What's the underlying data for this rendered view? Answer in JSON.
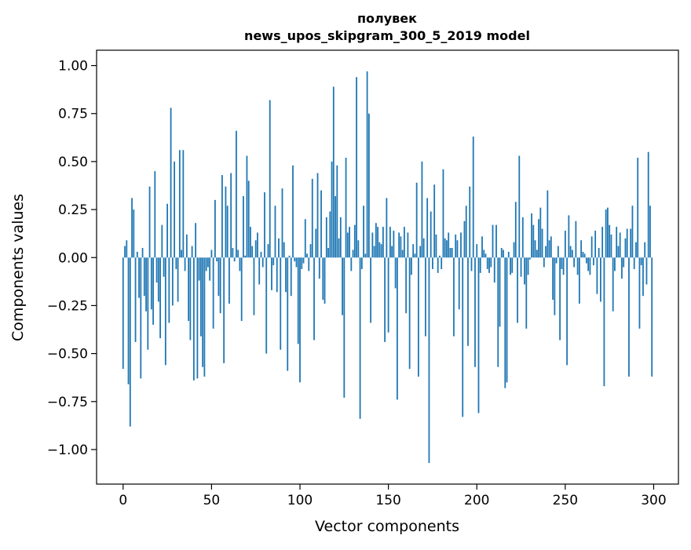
{
  "chart_data": {
    "type": "bar",
    "title": "полувек",
    "subtitle": "news_upos_skipgram_300_5_2019 model",
    "xlabel": "Vector components",
    "ylabel": "Components values",
    "xlim": [
      -15,
      314
    ],
    "ylim": [
      -1.18,
      1.08
    ],
    "x_ticks": [
      0,
      50,
      100,
      150,
      200,
      250,
      300
    ],
    "y_ticks": [
      -1.0,
      -0.75,
      -0.5,
      -0.25,
      0.0,
      0.25,
      0.5,
      0.75,
      1.0
    ],
    "x_tick_labels": [
      "0",
      "50",
      "100",
      "150",
      "200",
      "250",
      "300"
    ],
    "y_tick_labels": [
      "−1.00",
      "−0.75",
      "−0.50",
      "−0.25",
      "0.00",
      "0.25",
      "0.50",
      "0.75",
      "1.00"
    ],
    "bar_color": "#1f77b4",
    "values": [
      -0.58,
      0.06,
      0.09,
      -0.66,
      -0.88,
      0.31,
      0.25,
      -0.44,
      0.03,
      -0.21,
      -0.63,
      0.05,
      -0.2,
      -0.28,
      -0.48,
      0.37,
      -0.27,
      -0.35,
      0.45,
      -0.13,
      -0.23,
      -0.42,
      0.17,
      -0.1,
      -0.56,
      0.28,
      -0.34,
      0.78,
      -0.25,
      0.5,
      -0.06,
      -0.23,
      0.56,
      0.04,
      0.56,
      -0.07,
      0.12,
      -0.33,
      -0.43,
      0.06,
      -0.64,
      0.18,
      -0.63,
      -0.12,
      -0.41,
      -0.57,
      -0.62,
      -0.07,
      -0.05,
      -0.12,
      0.04,
      -0.37,
      0.3,
      -0.02,
      -0.2,
      -0.29,
      0.43,
      -0.55,
      0.37,
      0.27,
      -0.24,
      0.44,
      0.05,
      -0.02,
      0.66,
      0.04,
      -0.07,
      -0.33,
      0.32,
      0.01,
      0.53,
      0.4,
      0.16,
      0.06,
      -0.3,
      0.09,
      0.13,
      -0.14,
      0.03,
      -0.05,
      0.34,
      -0.5,
      0.07,
      0.82,
      -0.17,
      -0.04,
      0.27,
      -0.18,
      0.1,
      -0.48,
      0.36,
      0.08,
      -0.18,
      -0.59,
      0.01,
      -0.2,
      0.48,
      -0.02,
      -0.05,
      -0.45,
      -0.65,
      -0.06,
      -0.03,
      0.2,
      0.02,
      -0.07,
      0.07,
      0.41,
      -0.43,
      0.15,
      0.44,
      -0.11,
      0.35,
      -0.22,
      -0.24,
      0.21,
      0.05,
      0.24,
      0.5,
      0.89,
      0.32,
      0.48,
      0.1,
      0.21,
      -0.3,
      -0.73,
      0.52,
      0.13,
      0.16,
      -0.07,
      0.04,
      0.17,
      0.94,
      0.09,
      -0.84,
      -0.06,
      0.27,
      0.02,
      0.97,
      0.75,
      -0.34,
      0.13,
      0.06,
      0.18,
      0.16,
      0.08,
      0.07,
      0.16,
      -0.44,
      0.31,
      -0.39,
      0.16,
      0.06,
      0.14,
      -0.16,
      -0.74,
      0.13,
      0.11,
      0.04,
      0.16,
      -0.29,
      0.13,
      -0.58,
      -0.09,
      0.07,
      0.02,
      0.39,
      -0.62,
      0.06,
      0.5,
      0.1,
      -0.41,
      0.31,
      -1.07,
      0.24,
      -0.06,
      0.38,
      0.12,
      -0.08,
      0.01,
      -0.06,
      0.46,
      0.1,
      0.09,
      0.13,
      0.05,
      0.05,
      -0.41,
      0.12,
      0.09,
      -0.27,
      0.13,
      -0.83,
      0.19,
      0.27,
      -0.46,
      0.37,
      -0.07,
      0.63,
      -0.57,
      0.07,
      -0.81,
      -0.08,
      0.11,
      0.04,
      0.02,
      -0.06,
      -0.08,
      -0.05,
      0.17,
      -0.13,
      0.17,
      -0.57,
      -0.36,
      0.05,
      0.04,
      -0.68,
      -0.65,
      0.03,
      -0.09,
      -0.08,
      0.08,
      0.29,
      -0.34,
      0.53,
      -0.1,
      0.21,
      -0.14,
      -0.37,
      -0.09,
      -0.01,
      0.23,
      0.17,
      0.09,
      0.04,
      0.2,
      0.26,
      0.15,
      -0.05,
      0.06,
      0.35,
      0.09,
      0.11,
      -0.22,
      -0.3,
      -0.03,
      0.06,
      -0.43,
      -0.06,
      -0.09,
      0.14,
      -0.56,
      0.22,
      0.06,
      0.04,
      -0.05,
      0.19,
      -0.09,
      -0.24,
      0.09,
      0.03,
      0.02,
      -0.03,
      -0.07,
      -0.09,
      0.11,
      -0.04,
      0.14,
      -0.19,
      0.05,
      -0.23,
      0.16,
      -0.67,
      0.25,
      0.26,
      0.17,
      0.12,
      -0.28,
      -0.07,
      0.16,
      0.06,
      0.13,
      -0.11,
      -0.05,
      0.1,
      0.15,
      -0.62,
      0.15,
      0.27,
      -0.06,
      0.08,
      0.52,
      -0.37,
      -0.04,
      -0.2,
      0.08,
      -0.14,
      0.55,
      0.27,
      -0.62
    ]
  }
}
